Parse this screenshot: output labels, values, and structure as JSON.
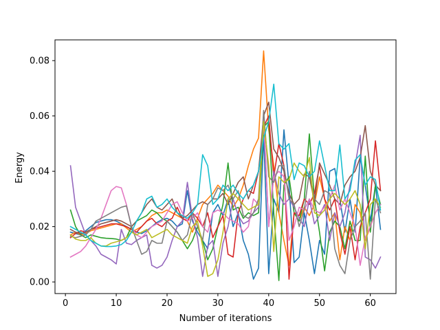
{
  "chart_data": {
    "type": "line",
    "title": "",
    "xlabel": "Number of iterations",
    "ylabel": "Energy",
    "xlim": [
      -2.05,
      65.05
    ],
    "ylim": [
      -0.0042,
      0.0875
    ],
    "xticks": [
      0,
      10,
      20,
      30,
      40,
      50,
      60
    ],
    "xtick_labels": [
      "0",
      "10",
      "20",
      "30",
      "40",
      "50",
      "60"
    ],
    "yticks": [
      0.0,
      0.02,
      0.04,
      0.06,
      0.08
    ],
    "ytick_labels": [
      "0.00",
      "0.02",
      "0.04",
      "0.06",
      "0.08"
    ],
    "grid": false,
    "x": [
      1,
      2,
      3,
      4,
      5,
      6,
      7,
      8,
      9,
      10,
      11,
      12,
      13,
      14,
      15,
      16,
      17,
      18,
      19,
      20,
      21,
      22,
      23,
      24,
      25,
      26,
      27,
      28,
      29,
      30,
      31,
      32,
      33,
      34,
      35,
      36,
      37,
      38,
      39,
      40,
      41,
      42,
      43,
      44,
      45,
      46,
      47,
      48,
      49,
      50,
      51,
      52,
      53,
      54,
      55,
      56,
      57,
      58,
      59,
      60,
      61,
      62
    ],
    "series": [
      {
        "color": "#1f77b4",
        "values": [
          0.018,
          0.0175,
          0.017,
          0.0185,
          0.02,
          0.0215,
          0.022,
          0.0225,
          0.0225,
          0.022,
          0.021,
          0.02,
          0.019,
          0.018,
          0.0175,
          0.0185,
          0.02,
          0.0215,
          0.0225,
          0.023,
          0.022,
          0.02,
          0.021,
          0.033,
          0.022,
          0.018,
          0.015,
          0.012,
          0.025,
          0.028,
          0.024,
          0.03,
          0.02,
          0.025,
          0.015,
          0.01,
          0.001,
          0.005,
          0.053,
          0.003,
          0.03,
          0.025,
          0.055,
          0.035,
          0.007,
          0.009,
          0.025,
          0.015,
          0.003,
          0.015,
          0.01,
          0.04,
          0.041,
          0.03,
          0.018,
          0.03,
          0.018,
          0.045,
          0.035,
          0.022,
          0.035,
          0.019
        ]
      },
      {
        "color": "#ff7f0e",
        "values": [
          0.017,
          0.018,
          0.017,
          0.0175,
          0.0185,
          0.019,
          0.0195,
          0.02,
          0.0205,
          0.021,
          0.021,
          0.0195,
          0.018,
          0.019,
          0.02,
          0.022,
          0.024,
          0.025,
          0.025,
          0.026,
          0.025,
          0.024,
          0.023,
          0.022,
          0.018,
          0.023,
          0.028,
          0.03,
          0.032,
          0.035,
          0.033,
          0.031,
          0.027,
          0.03,
          0.035,
          0.042,
          0.048,
          0.052,
          0.0835,
          0.055,
          0.042,
          0.025,
          0.015,
          0.006,
          0.025,
          0.022,
          0.027,
          0.024,
          0.028,
          0.038,
          0.03,
          0.022,
          0.025,
          0.008,
          0.02,
          0.015,
          0.028,
          0.025,
          0.015,
          0.02,
          0.025,
          0.028
        ]
      },
      {
        "color": "#2ca02c",
        "values": [
          0.026,
          0.02,
          0.017,
          0.016,
          0.017,
          0.0165,
          0.016,
          0.0158,
          0.0157,
          0.0155,
          0.015,
          0.016,
          0.02,
          0.022,
          0.023,
          0.024,
          0.026,
          0.025,
          0.023,
          0.022,
          0.02,
          0.018,
          0.015,
          0.012,
          0.015,
          0.02,
          0.015,
          0.008,
          0.012,
          0.02,
          0.028,
          0.043,
          0.026,
          0.027,
          0.023,
          0.025,
          0.024,
          0.025,
          0.056,
          0.058,
          0.025,
          0.0005,
          0.035,
          0.038,
          0.025,
          0.022,
          0.03,
          0.0535,
          0.03,
          0.018,
          0.004,
          0.018,
          0.022,
          0.02,
          0.012,
          0.022,
          0.015,
          0.015,
          0.0455,
          0.018,
          0.035,
          0.028
        ]
      },
      {
        "color": "#d62728",
        "values": [
          0.016,
          0.0175,
          0.0185,
          0.018,
          0.019,
          0.0195,
          0.02,
          0.0205,
          0.021,
          0.021,
          0.0205,
          0.02,
          0.019,
          0.018,
          0.02,
          0.022,
          0.023,
          0.021,
          0.02,
          0.022,
          0.023,
          0.027,
          0.023,
          0.022,
          0.025,
          0.023,
          0.02,
          0.025,
          0.016,
          0.02,
          0.024,
          0.01,
          0.009,
          0.025,
          0.03,
          0.033,
          0.032,
          0.04,
          0.056,
          0.06,
          0.038,
          0.05,
          0.042,
          0.001,
          0.025,
          0.024,
          0.03,
          0.028,
          0.032,
          0.042,
          0.03,
          0.026,
          0.03,
          0.018,
          0.01,
          0.02,
          0.008,
          0.02,
          0.025,
          0.03,
          0.051,
          0.033
        ]
      },
      {
        "color": "#9467bd",
        "values": [
          0.042,
          0.027,
          0.022,
          0.017,
          0.015,
          0.013,
          0.01,
          0.009,
          0.008,
          0.0065,
          0.019,
          0.014,
          0.0135,
          0.015,
          0.016,
          0.017,
          0.006,
          0.005,
          0.006,
          0.009,
          0.015,
          0.02,
          0.022,
          0.036,
          0.023,
          0.016,
          0.002,
          0.013,
          0.015,
          0.002,
          0.014,
          0.02,
          0.03,
          0.024,
          0.021,
          0.022,
          0.025,
          0.027,
          0.06,
          0.02,
          0.04,
          0.032,
          0.028,
          0.03,
          0.027,
          0.023,
          0.02,
          0.03,
          0.021,
          0.024,
          0.028,
          0.015,
          0.025,
          0.02,
          0.025,
          0.035,
          0.042,
          0.053,
          0.009,
          0.008,
          0.005,
          0.009
        ]
      },
      {
        "color": "#8c564b",
        "values": [
          0.019,
          0.018,
          0.0175,
          0.018,
          0.019,
          0.02,
          0.021,
          0.0215,
          0.022,
          0.0225,
          0.022,
          0.021,
          0.02,
          0.022,
          0.025,
          0.028,
          0.03,
          0.027,
          0.026,
          0.028,
          0.03,
          0.025,
          0.023,
          0.024,
          0.026,
          0.028,
          0.029,
          0.028,
          0.03,
          0.03,
          0.032,
          0.028,
          0.032,
          0.036,
          0.038,
          0.03,
          0.035,
          0.04,
          0.06,
          0.065,
          0.048,
          0.045,
          0.04,
          0.032,
          0.028,
          0.03,
          0.039,
          0.038,
          0.029,
          0.043,
          0.039,
          0.035,
          0.03,
          0.028,
          0.035,
          0.038,
          0.04,
          0.045,
          0.0565,
          0.04,
          0.035,
          0.033
        ]
      },
      {
        "color": "#e377c2",
        "values": [
          0.009,
          0.01,
          0.011,
          0.013,
          0.016,
          0.019,
          0.023,
          0.028,
          0.033,
          0.0345,
          0.034,
          0.028,
          0.02,
          0.017,
          0.016,
          0.018,
          0.02,
          0.021,
          0.022,
          0.025,
          0.028,
          0.029,
          0.025,
          0.022,
          0.023,
          0.025,
          0.02,
          0.018,
          0.025,
          0.026,
          0.025,
          0.023,
          0.022,
          0.021,
          0.018,
          0.02,
          0.03,
          0.028,
          0.059,
          0.02,
          0.038,
          0.04,
          0.038,
          0.015,
          0.02,
          0.027,
          0.026,
          0.03,
          0.026,
          0.025,
          0.027,
          0.03,
          0.035,
          0.026,
          0.03,
          0.025,
          0.02,
          0.006,
          0.016,
          0.02,
          0.025,
          0.028
        ]
      },
      {
        "color": "#7f7f7f",
        "values": [
          0.0165,
          0.016,
          0.0165,
          0.017,
          0.019,
          0.022,
          0.023,
          0.024,
          0.025,
          0.026,
          0.027,
          0.0275,
          0.02,
          0.015,
          0.01,
          0.011,
          0.015,
          0.014,
          0.014,
          0.022,
          0.02,
          0.018,
          0.015,
          0.017,
          0.025,
          0.02,
          0.015,
          0.028,
          0.03,
          0.034,
          0.033,
          0.035,
          0.03,
          0.033,
          0.024,
          0.023,
          0.025,
          0.03,
          0.062,
          0.038,
          0.036,
          0.042,
          0.042,
          0.03,
          0.028,
          0.02,
          0.026,
          0.04,
          0.03,
          0.028,
          0.033,
          0.032,
          0.012,
          0.006,
          0.003,
          0.015,
          0.02,
          0.022,
          0.025,
          0.001,
          0.03,
          0.025
        ]
      },
      {
        "color": "#bcbd22",
        "values": [
          0.017,
          0.0155,
          0.015,
          0.015,
          0.016,
          0.014,
          0.013,
          0.013,
          0.014,
          0.0145,
          0.015,
          0.016,
          0.018,
          0.017,
          0.018,
          0.019,
          0.016,
          0.017,
          0.018,
          0.019,
          0.017,
          0.016,
          0.015,
          0.014,
          0.02,
          0.022,
          0.013,
          0.002,
          0.003,
          0.008,
          0.018,
          0.03,
          0.032,
          0.03,
          0.028,
          0.026,
          0.027,
          0.028,
          0.058,
          0.042,
          0.011,
          0.038,
          0.036,
          0.037,
          0.043,
          0.04,
          0.038,
          0.045,
          0.025,
          0.024,
          0.026,
          0.03,
          0.032,
          0.03,
          0.028,
          0.03,
          0.033,
          0.028,
          0.012,
          0.028,
          0.03,
          0.027
        ]
      },
      {
        "color": "#17becf",
        "values": [
          0.02,
          0.019,
          0.018,
          0.017,
          0.015,
          0.014,
          0.013,
          0.0128,
          0.0128,
          0.013,
          0.0135,
          0.015,
          0.018,
          0.022,
          0.025,
          0.03,
          0.031,
          0.027,
          0.028,
          0.03,
          0.027,
          0.025,
          0.024,
          0.023,
          0.025,
          0.028,
          0.046,
          0.042,
          0.028,
          0.03,
          0.035,
          0.033,
          0.035,
          0.032,
          0.03,
          0.033,
          0.035,
          0.04,
          0.052,
          0.058,
          0.0715,
          0.05,
          0.048,
          0.05,
          0.037,
          0.043,
          0.042,
          0.038,
          0.04,
          0.051,
          0.042,
          0.033,
          0.033,
          0.0495,
          0.03,
          0.033,
          0.044,
          0.046,
          0.035,
          0.038,
          0.037,
          0.026
        ]
      }
    ]
  }
}
